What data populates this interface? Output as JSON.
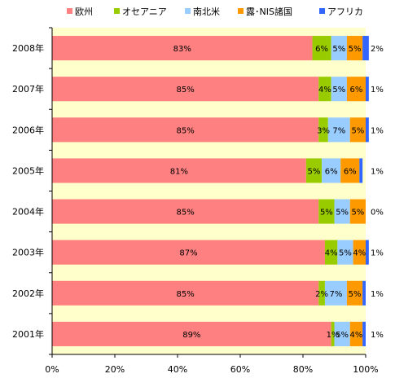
{
  "chart_data": {
    "type": "bar",
    "orientation": "horizontal",
    "stacked": "percent",
    "categories": [
      "2008年",
      "2007年",
      "2006年",
      "2005年",
      "2004年",
      "2003年",
      "2002年",
      "2001年"
    ],
    "series": [
      {
        "name": "欧州",
        "color": "#ff8080",
        "values": [
          83,
          85,
          85,
          81,
          85,
          87,
          85,
          89
        ]
      },
      {
        "name": "オセアニア",
        "color": "#99cc00",
        "values": [
          6,
          4,
          3,
          5,
          5,
          4,
          2,
          1
        ]
      },
      {
        "name": "南北米",
        "color": "#99ccff",
        "values": [
          5,
          5,
          7,
          6,
          5,
          5,
          7,
          5
        ]
      },
      {
        "name": "露･NIS諸国",
        "color": "#ff9900",
        "values": [
          5,
          6,
          5,
          6,
          5,
          4,
          5,
          4
        ]
      },
      {
        "name": "アフリカ",
        "color": "#3366ff",
        "values": [
          2,
          1,
          1,
          1,
          0,
          1,
          1,
          1
        ]
      }
    ],
    "data_labels": [
      [
        "83%",
        "6%",
        "5%",
        "5%",
        "2%"
      ],
      [
        "85%",
        "4%",
        "5%",
        "6%",
        "1%"
      ],
      [
        "85%",
        "3%",
        "7%",
        "5%",
        "1%"
      ],
      [
        "81%",
        "5%",
        "6%",
        "6%",
        "1%"
      ],
      [
        "85%",
        "5%",
        "5%",
        "5%",
        "0%"
      ],
      [
        "87%",
        "4%",
        "5%",
        "4%",
        "1%"
      ],
      [
        "85%",
        "2%",
        "7%",
        "5%",
        "1%"
      ],
      [
        "89%",
        "1%",
        "5%",
        "4%",
        "1%"
      ]
    ],
    "x_ticks": [
      "0%",
      "20%",
      "40%",
      "60%",
      "80%",
      "100%"
    ],
    "xlim": [
      0,
      100
    ],
    "legend_position": "top",
    "plot_background": "#ffffcc",
    "grid": false
  }
}
